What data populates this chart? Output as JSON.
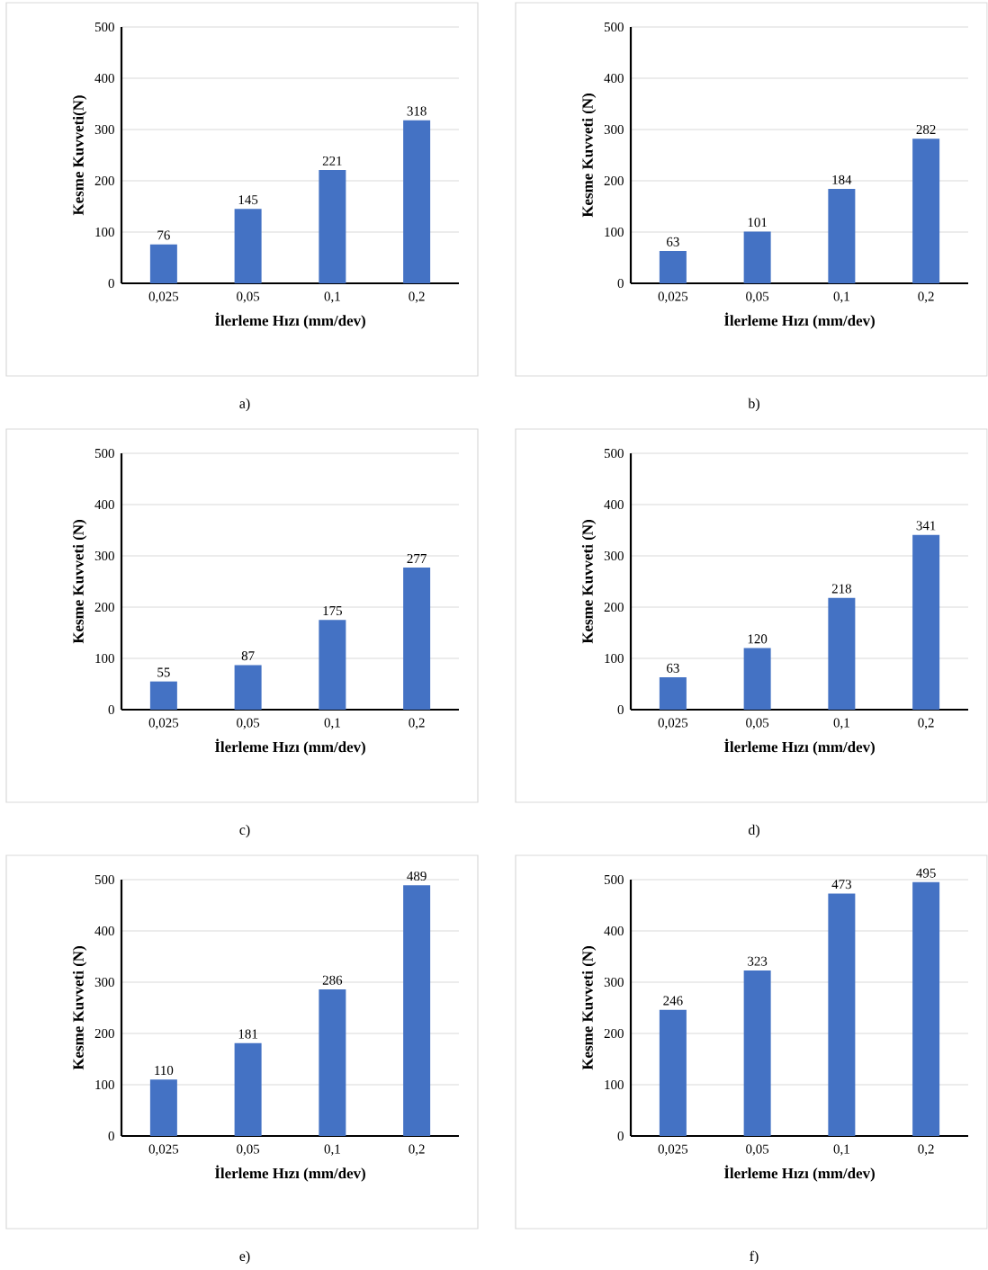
{
  "chart_data": [
    {
      "type": "bar",
      "categories": [
        "0,025",
        "0,05",
        "0,1",
        "0,2"
      ],
      "values": [
        76,
        145,
        221,
        318
      ],
      "color": "#4472c4",
      "ylim": [
        0,
        500
      ],
      "yticks": [
        0,
        100,
        200,
        300,
        400,
        500
      ],
      "grid": "y",
      "data_labels": true,
      "xlabel": "İlerleme Hızı (mm/dev)",
      "ylabel": "Kesme Kuvveti(N)",
      "annotations": [
        "a)"
      ]
    },
    {
      "type": "bar",
      "categories": [
        "0,025",
        "0,05",
        "0,1",
        "0,2"
      ],
      "values": [
        63,
        101,
        184,
        282
      ],
      "color": "#4472c4",
      "ylim": [
        0,
        500
      ],
      "yticks": [
        0,
        100,
        200,
        300,
        400,
        500
      ],
      "grid": "y",
      "data_labels": true,
      "xlabel": "İlerleme Hızı (mm/dev)",
      "ylabel": "Kesme Kuvveti (N)",
      "annotations": [
        "b)"
      ]
    },
    {
      "type": "bar",
      "categories": [
        "0,025",
        "0,05",
        "0,1",
        "0,2"
      ],
      "values": [
        55,
        87,
        175,
        277
      ],
      "color": "#4472c4",
      "ylim": [
        0,
        500
      ],
      "yticks": [
        0,
        100,
        200,
        300,
        400,
        500
      ],
      "grid": "y",
      "data_labels": true,
      "xlabel": "İlerleme Hızı (mm/dev)",
      "ylabel": "Kesme Kuvveti (N)",
      "annotations": [
        "c)"
      ]
    },
    {
      "type": "bar",
      "categories": [
        "0,025",
        "0,05",
        "0,1",
        "0,2"
      ],
      "values": [
        63,
        120,
        218,
        341
      ],
      "color": "#4472c4",
      "ylim": [
        0,
        500
      ],
      "yticks": [
        0,
        100,
        200,
        300,
        400,
        500
      ],
      "grid": "y",
      "data_labels": true,
      "xlabel": "İlerleme Hızı (mm/dev)",
      "ylabel": "Kesme Kuvveti (N)",
      "annotations": [
        "d)"
      ]
    },
    {
      "type": "bar",
      "categories": [
        "0,025",
        "0,05",
        "0,1",
        "0,2"
      ],
      "values": [
        110,
        181,
        286,
        489
      ],
      "color": "#4472c4",
      "ylim": [
        0,
        500
      ],
      "yticks": [
        0,
        100,
        200,
        300,
        400,
        500
      ],
      "grid": "y",
      "data_labels": true,
      "xlabel": "İlerleme Hızı (mm/dev)",
      "ylabel": "Kesme Kuvveti (N)",
      "annotations": [
        "e)"
      ]
    },
    {
      "type": "bar",
      "categories": [
        "0,025",
        "0,05",
        "0,1",
        "0,2"
      ],
      "values": [
        246,
        323,
        473,
        495
      ],
      "color": "#4472c4",
      "ylim": [
        0,
        500
      ],
      "yticks": [
        0,
        100,
        200,
        300,
        400,
        500
      ],
      "grid": "y",
      "data_labels": true,
      "xlabel": "İlerleme Hızı (mm/dev)",
      "ylabel": "Kesme Kuvveti (N)",
      "annotations": [
        "f)"
      ]
    }
  ]
}
